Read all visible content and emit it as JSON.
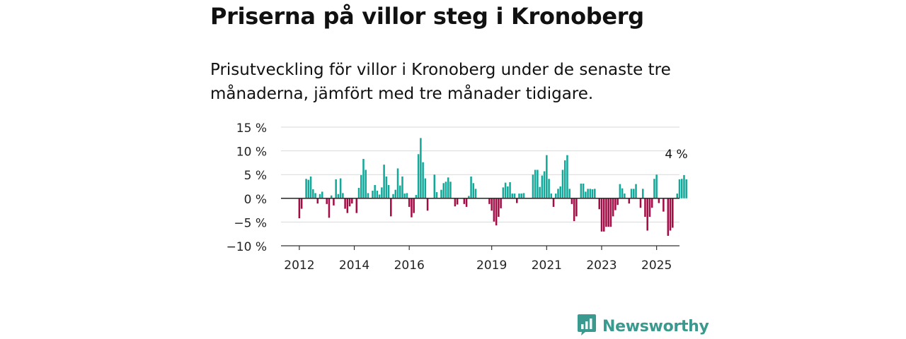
{
  "title": "Priserna på villor steg i Kronoberg",
  "subtitle": "Prisutveckling för villor i Kronoberg under de senaste tre månaderna, jämfört med tre månader tidigare.",
  "brand": {
    "name": "Newsworthy",
    "icon": "newsworthy-logo-icon",
    "color": "#3a9a8f"
  },
  "colors": {
    "positive": "#13a89a",
    "negative": "#a30c45",
    "grid": "#d9d9d9",
    "zero": "#333333"
  },
  "chart_data": {
    "type": "bar",
    "title": "Priserna på villor steg i Kronoberg",
    "xlabel": "",
    "ylabel": "",
    "ylim": [
      -10,
      15
    ],
    "y_ticks": [
      15,
      10,
      5,
      0,
      -5,
      -10
    ],
    "y_tick_labels": [
      "15 %",
      "10 %",
      "5 %",
      "0 %",
      "−5 %",
      "−10 %"
    ],
    "x_range": [
      "2011-05",
      "2025-11"
    ],
    "x_ticks": [
      "2012",
      "2014",
      "2016",
      "2019",
      "2021",
      "2023",
      "2025"
    ],
    "grid": true,
    "annotation": {
      "text": "4 %",
      "x": "2025-09",
      "value": 4
    },
    "values_start": "2012-01",
    "values": [
      -4.2,
      -2.2,
      0,
      4.1,
      3.9,
      4.6,
      1.9,
      1.1,
      -1.1,
      0.9,
      1.4,
      0,
      -1.2,
      -4.1,
      0.6,
      -1.5,
      4,
      0.9,
      4.2,
      1.1,
      -2.2,
      -3.1,
      -1.7,
      -1.1,
      0,
      -3.1,
      2.2,
      4.9,
      8.3,
      6,
      1.1,
      0,
      1.6,
      2.8,
      1.6,
      0.8,
      2.3,
      7.1,
      4.6,
      2.8,
      -3.8,
      0.9,
      1.8,
      6.3,
      2.7,
      4.6,
      1,
      1.1,
      -1.8,
      -4,
      -3.1,
      0.7,
      9.3,
      12.7,
      7.6,
      4.2,
      -2.6,
      0,
      0,
      5,
      1.3,
      0,
      1.8,
      3.2,
      3.5,
      4.4,
      3.5,
      0,
      -1.7,
      -1.3,
      0,
      0,
      -1.2,
      -1.8,
      0.5,
      4.6,
      3.2,
      2,
      0,
      0,
      0,
      0,
      0,
      -1.2,
      -2.6,
      -4.9,
      -5.7,
      -3.9,
      -2.1,
      2.3,
      3.3,
      2.5,
      3.4,
      1,
      1,
      -1,
      1,
      1,
      1.1,
      0,
      0,
      0,
      5,
      6,
      6,
      2.4,
      4.8,
      5.7,
      9.1,
      4.1,
      1,
      -1.8,
      1,
      2,
      2.5,
      6,
      8,
      9.1,
      2,
      -1.2,
      -4.8,
      -3.8,
      0,
      3.1,
      3.1,
      1.4,
      2,
      2,
      1.9,
      2,
      0,
      -2.3,
      -7,
      -7,
      -6,
      -6,
      -6,
      -3.8,
      -2.5,
      -1.4,
      3,
      2.1,
      1,
      0,
      -1.1,
      2,
      2,
      3,
      0,
      -2,
      2,
      -3.9,
      -6.8,
      -3.9,
      -2,
      4.1,
      5,
      -1,
      0,
      -2.8,
      0,
      -7.9,
      -6.8,
      -6.2,
      0,
      1,
      4,
      4.1,
      4.9,
      4
    ]
  }
}
